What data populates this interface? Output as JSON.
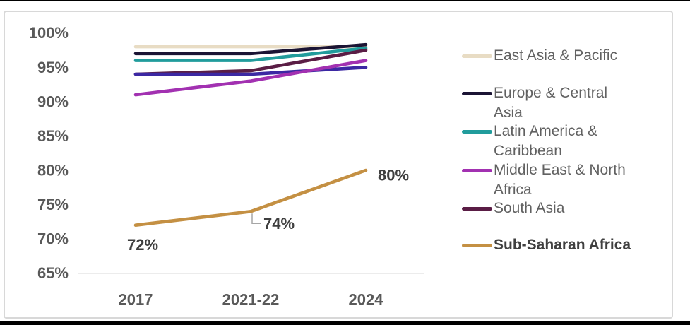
{
  "chart_data": {
    "type": "line",
    "title": "",
    "xlabel": "",
    "ylabel": "",
    "categories": [
      "2017",
      "2021-22",
      "2024"
    ],
    "series": [
      {
        "name": "East Asia & Pacific",
        "values": [
          98,
          98,
          98
        ],
        "color": "#e8dcc4"
      },
      {
        "name": "Latin America & Caribbean",
        "values": [
          96,
          96,
          97.8
        ],
        "color": "#219c9c"
      },
      {
        "name": "Europe & Central Asia",
        "values": [
          97,
          97,
          98.3
        ],
        "color": "#1b1434"
      },
      {
        "name": "South Asia",
        "values": [
          94,
          94.5,
          97.5
        ],
        "color": "#5a1d45"
      },
      {
        "name": "",
        "values": [
          94,
          94,
          95
        ],
        "color": "#3c28a3",
        "in_legend": false
      },
      {
        "name": "Middle East & North Africa",
        "values": [
          91,
          93,
          96
        ],
        "color": "#a231b1"
      },
      {
        "name": "Sub-Saharan Africa",
        "values": [
          72,
          74,
          80
        ],
        "color": "#c49043",
        "emphasis": true,
        "point_labels": [
          "72%",
          "74%",
          "80%"
        ]
      }
    ],
    "ylim": [
      65,
      100
    ],
    "ytick_labels": [
      "100%",
      "95%",
      "90%",
      "85%",
      "80%",
      "75%",
      "70%",
      "65%"
    ],
    "ytick_values": [
      100,
      95,
      90,
      85,
      80,
      75,
      70,
      65
    ],
    "grid": false,
    "axis_line": "bottom baseline only",
    "legend_position": "right"
  },
  "legend": {
    "items": [
      {
        "label": "East Asia & Pacific",
        "color": "#e8dcc4",
        "bold": false
      },
      {
        "label": "Europe & Central Asia",
        "color": "#1b1434",
        "bold": false
      },
      {
        "label": "Latin America & Caribbean",
        "color": "#219c9c",
        "bold": false
      },
      {
        "label": "Middle East & North Africa",
        "color": "#a231b1",
        "bold": false
      },
      {
        "label": "South Asia",
        "color": "#5a1d45",
        "bold": false
      },
      {
        "label": "Sub-Saharan Africa",
        "color": "#c49043",
        "bold": true
      }
    ]
  },
  "colors": {
    "axis_text": "#595959",
    "data_label_text": "#3f3f3f",
    "legend_text": "#616161",
    "card_border": "#d8d8d8",
    "baseline": "#d9d9d9",
    "leader_line": "#a6a6a6"
  }
}
